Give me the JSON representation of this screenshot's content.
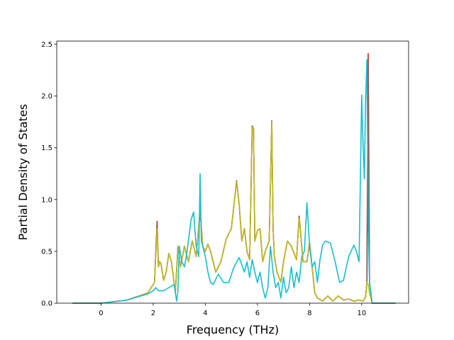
{
  "chart_data": {
    "type": "line",
    "title": "",
    "xlabel": "Frequency (THz)",
    "ylabel": "Partial Density of States",
    "xlim": [
      -1.7,
      11.8
    ],
    "ylim": [
      0.0,
      2.53
    ],
    "xticks": [
      0,
      2,
      4,
      6,
      8,
      10
    ],
    "yticks": [
      0.0,
      0.5,
      1.0,
      1.5,
      2.0,
      2.5
    ],
    "xtick_labels": [
      "0",
      "2",
      "4",
      "6",
      "8",
      "10"
    ],
    "ytick_labels": [
      "0.0",
      "0.5",
      "1.0",
      "1.5",
      "2.0",
      "2.5"
    ],
    "grid": false,
    "legend": "none",
    "series": [
      {
        "color": "#d62728",
        "x": [
          -1.1,
          0.0,
          1.0,
          1.8,
          2.05,
          2.15,
          2.2,
          2.25,
          2.3,
          2.4,
          2.5,
          2.6,
          2.7,
          2.85,
          2.95,
          3.05,
          3.2,
          3.35,
          3.5,
          3.65,
          3.8,
          3.9,
          4.0,
          4.1,
          4.2,
          4.4,
          4.6,
          4.8,
          5.0,
          5.2,
          5.3,
          5.4,
          5.5,
          5.6,
          5.7,
          5.8,
          5.85,
          5.9,
          6.0,
          6.1,
          6.2,
          6.3,
          6.45,
          6.55,
          6.6,
          6.65,
          6.75,
          6.9,
          7.0,
          7.15,
          7.3,
          7.5,
          7.6,
          7.75,
          7.9,
          8.0,
          8.1,
          8.2,
          8.3,
          8.5,
          8.7,
          8.9,
          9.1,
          9.3,
          9.5,
          9.7,
          9.9,
          10.05,
          10.15,
          10.2,
          10.25,
          10.3,
          10.4,
          11.3
        ],
        "values": [
          0.0,
          0.0,
          0.03,
          0.1,
          0.2,
          0.79,
          0.35,
          0.4,
          0.38,
          0.22,
          0.3,
          0.48,
          0.4,
          0.1,
          0.55,
          0.35,
          0.55,
          0.4,
          0.6,
          0.45,
          0.9,
          0.55,
          0.5,
          0.57,
          0.5,
          0.3,
          0.4,
          0.62,
          0.72,
          1.18,
          0.95,
          0.6,
          0.72,
          0.5,
          0.42,
          1.71,
          1.68,
          0.6,
          0.7,
          0.72,
          0.4,
          0.5,
          0.6,
          1.76,
          0.72,
          0.45,
          0.3,
          0.2,
          0.4,
          0.6,
          0.55,
          0.42,
          0.84,
          0.4,
          0.4,
          0.58,
          0.35,
          0.1,
          0.05,
          0.02,
          0.07,
          0.02,
          0.07,
          0.03,
          0.04,
          0.02,
          0.03,
          0.02,
          0.06,
          0.2,
          2.41,
          0.2,
          0.0,
          0.0
        ]
      },
      {
        "color": "#8c564b",
        "x": [
          -1.1,
          0.0,
          1.0,
          1.8,
          2.05,
          2.15,
          2.2,
          2.25,
          2.3,
          2.4,
          2.5,
          2.6,
          2.7,
          2.85,
          2.95,
          3.05,
          3.2,
          3.35,
          3.5,
          3.65,
          3.8,
          3.9,
          4.0,
          4.1,
          4.2,
          4.4,
          4.6,
          4.8,
          5.0,
          5.2,
          5.3,
          5.4,
          5.5,
          5.6,
          5.7,
          5.8,
          5.85,
          5.9,
          6.0,
          6.1,
          6.2,
          6.3,
          6.45,
          6.55,
          6.6,
          6.65,
          6.75,
          6.9,
          7.0,
          7.15,
          7.3,
          7.5,
          7.6,
          7.75,
          7.9,
          8.0,
          8.1,
          8.2,
          8.3,
          8.5,
          8.7,
          8.9,
          9.1,
          9.3,
          9.5,
          9.7,
          9.9,
          10.05,
          10.15,
          10.2,
          10.25,
          10.3,
          10.4,
          11.3
        ],
        "values": [
          0.0,
          0.0,
          0.03,
          0.1,
          0.2,
          0.78,
          0.35,
          0.4,
          0.38,
          0.22,
          0.3,
          0.48,
          0.4,
          0.1,
          0.55,
          0.35,
          0.55,
          0.4,
          0.6,
          0.45,
          0.9,
          0.55,
          0.5,
          0.57,
          0.5,
          0.3,
          0.4,
          0.62,
          0.72,
          1.18,
          0.95,
          0.6,
          0.72,
          0.5,
          0.42,
          1.71,
          1.68,
          0.6,
          0.7,
          0.72,
          0.4,
          0.5,
          0.6,
          1.76,
          0.72,
          0.45,
          0.3,
          0.2,
          0.4,
          0.6,
          0.55,
          0.42,
          0.84,
          0.4,
          0.4,
          0.58,
          0.35,
          0.1,
          0.05,
          0.02,
          0.07,
          0.02,
          0.07,
          0.03,
          0.04,
          0.02,
          0.03,
          0.02,
          0.06,
          0.2,
          2.36,
          0.2,
          0.0,
          0.0
        ]
      },
      {
        "color": "#bcbd22",
        "x": [
          -1.1,
          0.0,
          1.0,
          1.8,
          2.05,
          2.15,
          2.2,
          2.25,
          2.3,
          2.4,
          2.5,
          2.6,
          2.7,
          2.85,
          2.95,
          3.05,
          3.2,
          3.35,
          3.5,
          3.65,
          3.8,
          3.9,
          4.0,
          4.1,
          4.2,
          4.4,
          4.6,
          4.8,
          5.0,
          5.2,
          5.3,
          5.4,
          5.5,
          5.6,
          5.7,
          5.8,
          5.85,
          5.9,
          6.0,
          6.1,
          6.2,
          6.3,
          6.45,
          6.55,
          6.6,
          6.65,
          6.75,
          6.9,
          7.0,
          7.15,
          7.3,
          7.5,
          7.6,
          7.75,
          7.9,
          8.0,
          8.1,
          8.2,
          8.3,
          8.5,
          8.7,
          8.9,
          9.1,
          9.3,
          9.5,
          9.7,
          9.9,
          10.05,
          10.15,
          10.2,
          10.25,
          10.3,
          10.4,
          11.3
        ],
        "values": [
          0.0,
          0.0,
          0.03,
          0.1,
          0.2,
          0.72,
          0.35,
          0.4,
          0.38,
          0.22,
          0.3,
          0.48,
          0.4,
          0.1,
          0.55,
          0.35,
          0.55,
          0.4,
          0.6,
          0.45,
          0.9,
          0.55,
          0.5,
          0.57,
          0.5,
          0.3,
          0.4,
          0.62,
          0.72,
          1.17,
          0.95,
          0.6,
          0.72,
          0.5,
          0.42,
          1.7,
          1.67,
          0.6,
          0.7,
          0.72,
          0.4,
          0.5,
          0.6,
          1.75,
          0.72,
          0.45,
          0.3,
          0.2,
          0.4,
          0.6,
          0.55,
          0.42,
          0.82,
          0.4,
          0.4,
          0.57,
          0.35,
          0.1,
          0.05,
          0.02,
          0.07,
          0.02,
          0.07,
          0.03,
          0.04,
          0.02,
          0.03,
          0.02,
          0.06,
          0.2,
          0.18,
          0.1,
          0.0,
          0.0
        ]
      },
      {
        "color": "#17becf",
        "x": [
          -1.1,
          0.0,
          1.0,
          1.8,
          2.0,
          2.1,
          2.2,
          2.4,
          2.6,
          2.8,
          2.9,
          2.95,
          3.0,
          3.1,
          3.2,
          3.3,
          3.45,
          3.55,
          3.65,
          3.75,
          3.8,
          3.85,
          3.9,
          4.0,
          4.1,
          4.2,
          4.3,
          4.5,
          4.7,
          4.9,
          5.1,
          5.3,
          5.5,
          5.6,
          5.7,
          5.8,
          5.9,
          6.0,
          6.1,
          6.2,
          6.3,
          6.4,
          6.5,
          6.6,
          6.7,
          6.8,
          6.9,
          7.0,
          7.1,
          7.2,
          7.3,
          7.4,
          7.5,
          7.6,
          7.7,
          7.8,
          7.9,
          8.0,
          8.1,
          8.2,
          8.3,
          8.4,
          8.5,
          8.6,
          8.8,
          9.0,
          9.15,
          9.3,
          9.5,
          9.7,
          9.8,
          9.9,
          10.0,
          10.05,
          10.1,
          10.15,
          10.2,
          10.25,
          10.3,
          10.4,
          11.3
        ],
        "values": [
          0.0,
          0.0,
          0.03,
          0.09,
          0.12,
          0.15,
          0.12,
          0.12,
          0.15,
          0.18,
          0.02,
          0.12,
          0.55,
          0.4,
          0.35,
          0.5,
          0.8,
          0.88,
          0.55,
          0.45,
          1.25,
          0.6,
          0.55,
          0.45,
          0.3,
          0.2,
          0.18,
          0.28,
          0.2,
          0.2,
          0.35,
          0.44,
          0.3,
          0.4,
          0.25,
          0.42,
          0.3,
          0.2,
          0.3,
          0.15,
          0.05,
          0.15,
          0.55,
          0.3,
          0.15,
          0.2,
          0.05,
          0.25,
          0.1,
          0.15,
          0.35,
          0.15,
          0.3,
          0.2,
          0.45,
          0.5,
          0.97,
          0.55,
          0.35,
          0.4,
          0.2,
          0.42,
          0.56,
          0.6,
          0.58,
          0.38,
          0.2,
          0.22,
          0.45,
          0.56,
          0.5,
          0.4,
          2.01,
          1.55,
          1.2,
          1.95,
          2.35,
          0.8,
          0.2,
          0.0,
          0.0
        ]
      }
    ]
  }
}
